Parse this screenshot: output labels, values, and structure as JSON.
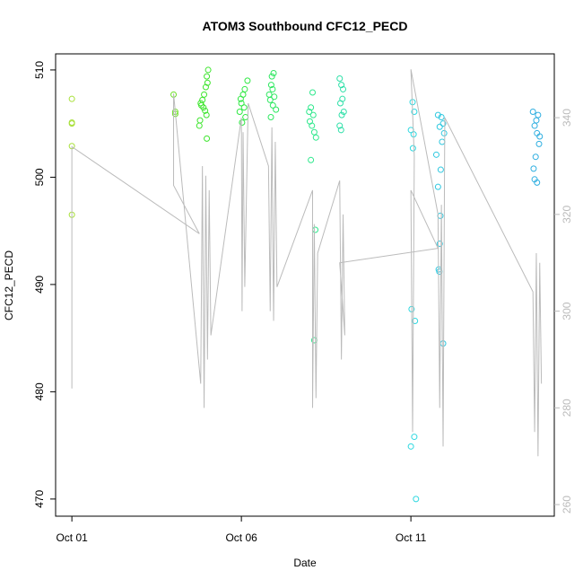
{
  "chart_data": {
    "type": "scatter",
    "title": "ATOM3 Southbound CFC12_PECD",
    "x_label": "Date",
    "y_label": "CFC12_PECD",
    "xlim": [
      -0.48,
      14.23
    ],
    "ylim": [
      468.4,
      511.5
    ],
    "y2lim": [
      257.6,
      353.2
    ],
    "xticks": [
      {
        "value": 0,
        "label": "Oct 01"
      },
      {
        "value": 5,
        "label": "Oct 06"
      },
      {
        "value": 10,
        "label": "Oct 11"
      }
    ],
    "yticks": [
      470,
      480,
      490,
      500,
      510
    ],
    "y2ticks": [
      260,
      280,
      300,
      320,
      340
    ],
    "series": [
      {
        "color": "#a8e03a",
        "x": [
          0,
          0,
          0,
          0,
          0
        ],
        "values": [
          507.3,
          505.1,
          505.0,
          502.9,
          496.5
        ]
      },
      {
        "color": "#6fe02a",
        "x": [
          3.0,
          3.05,
          3.05
        ],
        "values": [
          507.7,
          506.1,
          505.9
        ]
      },
      {
        "color": "#3ee52e",
        "x": [
          4.02,
          3.98,
          4.0,
          3.95,
          3.9,
          3.85,
          3.8,
          3.82,
          3.88,
          3.93,
          3.97,
          3.78,
          3.76,
          3.98
        ],
        "values": [
          510.0,
          509.4,
          508.8,
          508.4,
          507.7,
          507.2,
          506.9,
          506.7,
          506.5,
          506.2,
          505.8,
          505.3,
          504.8,
          503.6
        ]
      },
      {
        "color": "#2ee842",
        "x": [
          5.18,
          5.1,
          5.05,
          4.98,
          5.0,
          5.08,
          4.95,
          5.12,
          5.02
        ],
        "values": [
          509.0,
          508.2,
          507.7,
          507.3,
          506.9,
          506.5,
          506.1,
          505.6,
          505.1
        ]
      },
      {
        "color": "#2ee860",
        "x": [
          5.95,
          5.9,
          5.88,
          5.92,
          5.82,
          5.97,
          5.85,
          5.93,
          6.02,
          5.87
        ],
        "values": [
          509.7,
          509.4,
          508.6,
          508.2,
          507.7,
          507.5,
          507.2,
          506.7,
          506.3,
          505.6
        ]
      },
      {
        "color": "#2ee88c",
        "x": [
          7.1,
          7.05,
          7.0,
          7.12,
          7.02,
          7.08,
          7.15,
          7.2,
          7.05,
          7.18,
          7.15
        ],
        "values": [
          507.9,
          506.5,
          506.1,
          505.8,
          505.2,
          504.8,
          504.2,
          503.7,
          501.6,
          495.1,
          484.8
        ]
      },
      {
        "color": "#2ee0a8",
        "x": [
          7.9,
          7.95,
          8.0,
          7.98,
          7.92,
          8.02,
          7.96,
          7.9,
          7.94
        ],
        "values": [
          509.2,
          508.6,
          508.2,
          507.3,
          506.9,
          506.1,
          505.8,
          504.8,
          504.4
        ]
      },
      {
        "color": "#2ed8e0",
        "x": [
          10.05,
          10.1,
          10.0,
          10.08,
          10.06,
          10.02,
          10.12,
          10.1,
          10.0,
          10.15
        ],
        "values": [
          507.0,
          506.1,
          504.4,
          504.0,
          502.7,
          487.7,
          486.6,
          475.8,
          474.9,
          470.0
        ]
      },
      {
        "color": "#2ec8e0",
        "x": [
          10.8,
          10.9,
          10.95,
          10.85,
          10.98,
          10.92,
          10.75,
          10.88,
          10.8,
          10.87,
          10.85,
          10.82,
          10.84,
          10.95
        ],
        "values": [
          505.8,
          505.6,
          505.0,
          504.7,
          504.1,
          503.3,
          502.1,
          500.7,
          499.1,
          496.4,
          493.8,
          491.4,
          491.2,
          484.5
        ]
      },
      {
        "color": "#2eaee0",
        "x": [
          13.6,
          13.75,
          13.7,
          13.65,
          13.72,
          13.8,
          13.78,
          13.68,
          13.62,
          13.65,
          13.72
        ],
        "values": [
          506.1,
          505.8,
          505.3,
          504.8,
          504.1,
          503.8,
          503.1,
          501.9,
          500.8,
          499.8,
          499.5
        ]
      },
      {
        "color": "#bbbbbb",
        "type": "line",
        "axis": "y2",
        "x": [
          0,
          0,
          3.76,
          3.0,
          3.0,
          3.8,
          3.85,
          3.9,
          3.95,
          4.0,
          4.05,
          4.1,
          5.0,
          5.02,
          5.05,
          5.1,
          5.2,
          5.8,
          5.85,
          5.9,
          5.95,
          6.0,
          6.05,
          7.1,
          7.1,
          7.15,
          7.2,
          7.25,
          7.9,
          7.95,
          8.0,
          8.05,
          7.9,
          10.8,
          10.0,
          10.05,
          10.1,
          10.0,
          10.8,
          10.85,
          10.9,
          10.95,
          11.0,
          13.6,
          13.65,
          13.7,
          13.75,
          13.8,
          13.85
        ],
        "values": [
          284,
          334,
          316,
          326,
          345,
          285,
          330,
          280,
          328,
          290,
          325,
          295,
          340,
          300,
          337,
          305,
          343,
          330,
          300,
          338,
          298,
          335,
          305,
          325,
          280,
          318,
          282,
          312,
          327,
          290,
          320,
          295,
          310,
          313,
          325,
          275,
          332,
          350,
          320,
          280,
          322,
          272,
          340,
          304,
          275,
          312,
          270,
          310,
          285
        ]
      }
    ]
  }
}
